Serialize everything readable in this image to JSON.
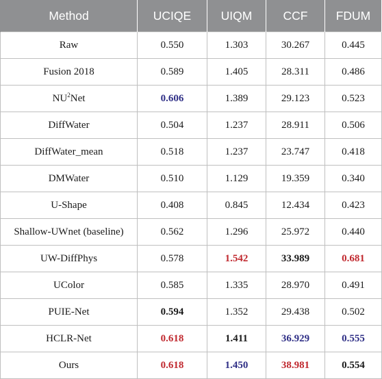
{
  "headers": [
    "Method",
    "UCIQE",
    "UIQM",
    "CCF",
    "FDUM"
  ],
  "rows": [
    {
      "method": "Raw",
      "ucique": "0.550",
      "uiqm": "1.303",
      "ccf": "30.267",
      "fdum": "0.445"
    },
    {
      "method": "Fusion 2018",
      "ucique": "0.589",
      "uiqm": "1.405",
      "ccf": "28.311",
      "fdum": "0.486"
    },
    {
      "method_pre": "NU",
      "method_sup": "2",
      "method_post": "Net",
      "ucique": "0.606",
      "uiqm": "1.389",
      "ccf": "29.123",
      "fdum": "0.523"
    },
    {
      "method": "DiffWater",
      "ucique": "0.504",
      "uiqm": "1.237",
      "ccf": "28.911",
      "fdum": "0.506"
    },
    {
      "method": "DiffWater_mean",
      "ucique": "0.518",
      "uiqm": "1.237",
      "ccf": "23.747",
      "fdum": "0.418"
    },
    {
      "method": "DMWater",
      "ucique": "0.510",
      "uiqm": "1.129",
      "ccf": "19.359",
      "fdum": "0.340"
    },
    {
      "method": "U-Shape",
      "ucique": "0.408",
      "uiqm": "0.845",
      "ccf": "12.434",
      "fdum": "0.423"
    },
    {
      "method": "Shallow-UWnet (baseline)",
      "ucique": "0.562",
      "uiqm": "1.296",
      "ccf": "25.972",
      "fdum": "0.440"
    },
    {
      "method": "UW-DiffPhys",
      "ucique": "0.578",
      "uiqm": "1.542",
      "ccf": "33.989",
      "fdum": "0.681"
    },
    {
      "method": "UColor",
      "ucique": "0.585",
      "uiqm": "1.335",
      "ccf": "28.970",
      "fdum": "0.491"
    },
    {
      "method": "PUIE-Net",
      "ucique": "0.594",
      "uiqm": "1.352",
      "ccf": "29.438",
      "fdum": "0.502"
    },
    {
      "method": "HCLR-Net",
      "ucique": "0.618",
      "uiqm": "1.411",
      "ccf": "36.929",
      "fdum": "0.555"
    },
    {
      "method": "Ours",
      "ucique": "0.618",
      "uiqm": "1.450",
      "ccf": "38.981",
      "fdum": "0.554"
    }
  ],
  "colors": {
    "header_bg": "#8f9092",
    "best": "#c0282e",
    "second": "#2f2f86",
    "border": "#bfbfbf"
  }
}
